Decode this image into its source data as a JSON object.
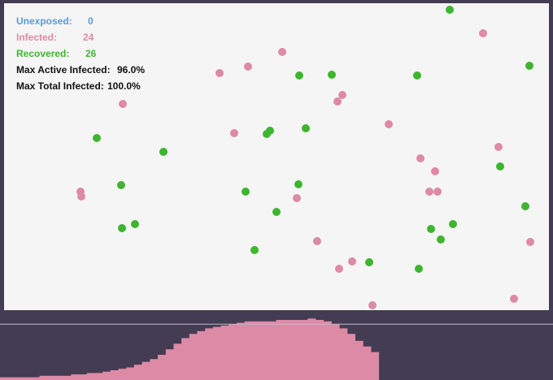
{
  "stats": {
    "unexposed": {
      "label": "Unexposed:",
      "value": "0",
      "color": "#5b9bd1"
    },
    "infected": {
      "label": "Infected:",
      "value": "24",
      "color": "#dd8aa7"
    },
    "recovered": {
      "label": "Recovered:",
      "value": "26",
      "color": "#3eb52f"
    },
    "max_active": {
      "label": "Max Active Infected:",
      "value": "96.0%"
    },
    "max_total": {
      "label": "Max Total Infected:",
      "value": "100.0%"
    }
  },
  "colors": {
    "infected": "#dd8aa7",
    "recovered": "#3eb52f",
    "background": "#433c53",
    "field": "#f5f5f5"
  },
  "chart_data": {
    "type": "area",
    "title": "",
    "series": [
      {
        "name": "Infected",
        "color": "#dd8aa7",
        "values": [
          2,
          2,
          2,
          2,
          2,
          3,
          3,
          3,
          3,
          4,
          4,
          5,
          5,
          6,
          7,
          8,
          9,
          11,
          13,
          15,
          18,
          22,
          26,
          30,
          33,
          35,
          37,
          38,
          39,
          40,
          41,
          42,
          42,
          42,
          42,
          43,
          43,
          43,
          43,
          44,
          43,
          42,
          40,
          37,
          33,
          28,
          24,
          20
        ]
      },
      {
        "name": "Recovered",
        "color": "#433c53",
        "values": [
          0,
          0,
          0,
          0,
          0,
          0,
          0,
          0,
          0,
          0,
          0,
          0,
          0,
          0,
          0,
          0,
          0,
          0,
          0,
          0,
          0,
          0,
          0,
          0,
          0,
          0,
          0,
          0,
          0,
          0,
          0,
          0,
          0,
          0,
          0,
          0,
          0,
          0,
          0,
          0,
          0,
          0,
          0,
          0,
          0,
          0,
          0,
          0
        ]
      }
    ],
    "ylim": [
      0,
      50
    ],
    "reference_line": 40
  }
}
